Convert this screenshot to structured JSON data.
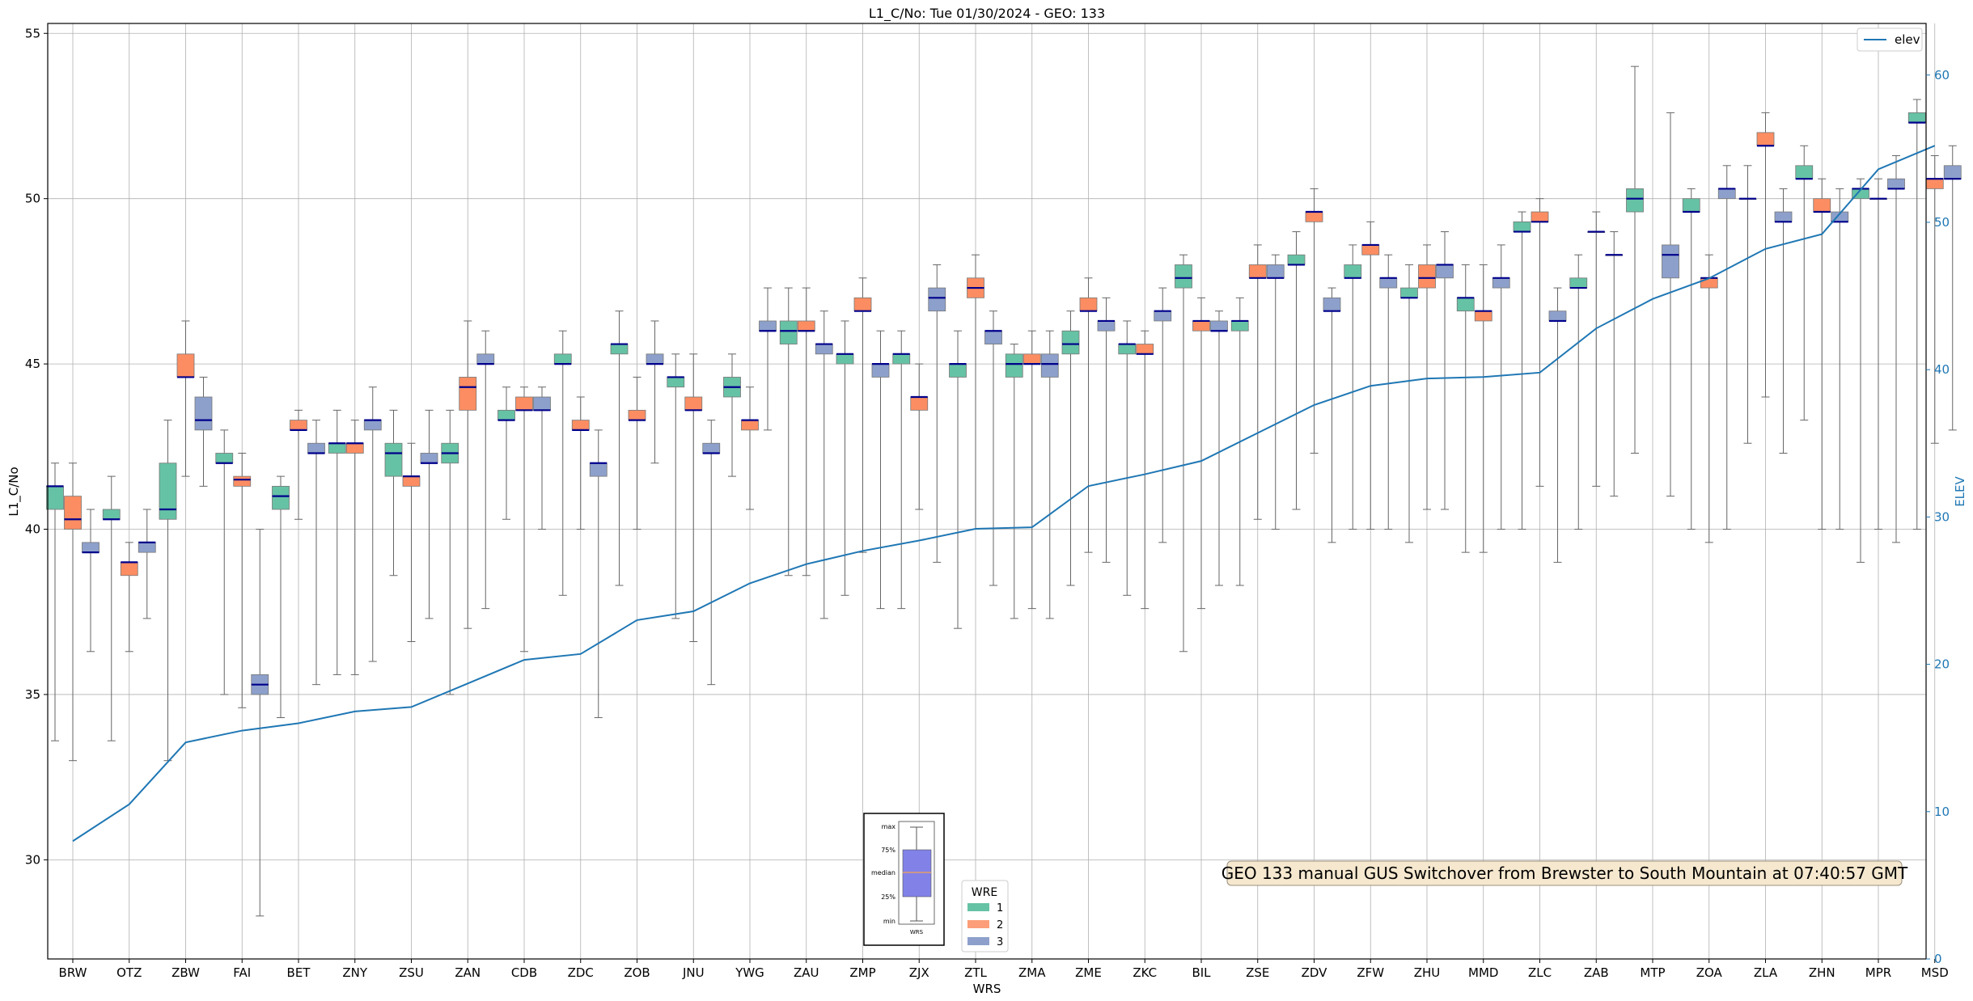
{
  "chart_data": {
    "type": "box",
    "title": "L1_C/No: Tue 01/30/2024 - GEO: 133",
    "xlabel": "WRS",
    "ylabel": "L1_C/No",
    "y2label": "ELEV",
    "ylim": [
      27.0,
      55.3
    ],
    "y2lim": [
      0,
      63.5
    ],
    "yticks": [
      30,
      35,
      40,
      45,
      50,
      55
    ],
    "y2ticks": [
      0,
      10,
      20,
      30,
      40,
      50,
      60
    ],
    "grid": true,
    "categories": [
      "BRW",
      "OTZ",
      "ZBW",
      "FAI",
      "BET",
      "ZNY",
      "ZSU",
      "ZAN",
      "CDB",
      "ZDC",
      "ZOB",
      "JNU",
      "YWG",
      "ZAU",
      "ZMP",
      "ZJX",
      "ZTL",
      "ZMA",
      "ZME",
      "ZKC",
      "BIL",
      "ZSE",
      "ZDV",
      "ZFW",
      "ZHU",
      "MMD",
      "ZLC",
      "ZAB",
      "MTP",
      "ZOA",
      "ZLA",
      "ZHN",
      "MPR",
      "MSD"
    ],
    "series_colors": {
      "1": "#66c2a5",
      "2": "#fc8d62",
      "3": "#8da0cb"
    },
    "elev_color": "#1f77b4",
    "boxes": [
      {
        "s": "BRW",
        "w": 1,
        "min": 33.6,
        "q1": 40.6,
        "med": 41.3,
        "q3": 41.3,
        "max": 42.0
      },
      {
        "s": "BRW",
        "w": 2,
        "min": 33.0,
        "q1": 40.0,
        "med": 40.3,
        "q3": 41.0,
        "max": 42.0
      },
      {
        "s": "BRW",
        "w": 3,
        "min": 36.3,
        "q1": 39.3,
        "med": 39.3,
        "q3": 39.6,
        "max": 40.6
      },
      {
        "s": "OTZ",
        "w": 1,
        "min": 33.6,
        "q1": 40.3,
        "med": 40.3,
        "q3": 40.6,
        "max": 41.6
      },
      {
        "s": "OTZ",
        "w": 2,
        "min": 36.3,
        "q1": 38.6,
        "med": 39.0,
        "q3": 39.0,
        "max": 39.6
      },
      {
        "s": "OTZ",
        "w": 3,
        "min": 37.3,
        "q1": 39.3,
        "med": 39.6,
        "q3": 39.6,
        "max": 40.6
      },
      {
        "s": "ZBW",
        "w": 1,
        "min": 33.0,
        "q1": 40.3,
        "med": 40.6,
        "q3": 42.0,
        "max": 43.3
      },
      {
        "s": "ZBW",
        "w": 2,
        "min": 41.6,
        "q1": 44.6,
        "med": 44.6,
        "q3": 45.3,
        "max": 46.3
      },
      {
        "s": "ZBW",
        "w": 3,
        "min": 41.3,
        "q1": 43.0,
        "med": 43.3,
        "q3": 44.0,
        "max": 44.6
      },
      {
        "s": "FAI",
        "w": 1,
        "min": 35.0,
        "q1": 42.0,
        "med": 42.0,
        "q3": 42.3,
        "max": 43.0
      },
      {
        "s": "FAI",
        "w": 2,
        "min": 34.6,
        "q1": 41.3,
        "med": 41.5,
        "q3": 41.6,
        "max": 42.3
      },
      {
        "s": "FAI",
        "w": 3,
        "min": 28.3,
        "q1": 35.0,
        "med": 35.3,
        "q3": 35.6,
        "max": 40.0
      },
      {
        "s": "BET",
        "w": 1,
        "min": 34.3,
        "q1": 40.6,
        "med": 41.0,
        "q3": 41.3,
        "max": 41.6
      },
      {
        "s": "BET",
        "w": 2,
        "min": 40.3,
        "q1": 43.0,
        "med": 43.0,
        "q3": 43.3,
        "max": 43.6
      },
      {
        "s": "BET",
        "w": 3,
        "min": 35.3,
        "q1": 42.3,
        "med": 42.3,
        "q3": 42.6,
        "max": 43.3
      },
      {
        "s": "ZNY",
        "w": 1,
        "min": 35.6,
        "q1": 42.3,
        "med": 42.6,
        "q3": 42.6,
        "max": 43.6
      },
      {
        "s": "ZNY",
        "w": 2,
        "min": 35.6,
        "q1": 42.3,
        "med": 42.6,
        "q3": 42.6,
        "max": 43.3
      },
      {
        "s": "ZNY",
        "w": 3,
        "min": 36.0,
        "q1": 43.0,
        "med": 43.3,
        "q3": 43.3,
        "max": 44.3
      },
      {
        "s": "ZSU",
        "w": 1,
        "min": 38.6,
        "q1": 41.6,
        "med": 42.3,
        "q3": 42.6,
        "max": 43.6
      },
      {
        "s": "ZSU",
        "w": 2,
        "min": 36.6,
        "q1": 41.3,
        "med": 41.6,
        "q3": 41.6,
        "max": 42.6
      },
      {
        "s": "ZSU",
        "w": 3,
        "min": 37.3,
        "q1": 42.0,
        "med": 42.0,
        "q3": 42.3,
        "max": 43.6
      },
      {
        "s": "ZAN",
        "w": 1,
        "min": 35.0,
        "q1": 42.0,
        "med": 42.3,
        "q3": 42.6,
        "max": 43.6
      },
      {
        "s": "ZAN",
        "w": 2,
        "min": 37.0,
        "q1": 43.6,
        "med": 44.3,
        "q3": 44.6,
        "max": 46.3
      },
      {
        "s": "ZAN",
        "w": 3,
        "min": 37.6,
        "q1": 45.0,
        "med": 45.0,
        "q3": 45.3,
        "max": 46.0
      },
      {
        "s": "CDB",
        "w": 1,
        "min": 40.3,
        "q1": 43.3,
        "med": 43.3,
        "q3": 43.6,
        "max": 44.3
      },
      {
        "s": "CDB",
        "w": 2,
        "min": 36.3,
        "q1": 43.6,
        "med": 43.6,
        "q3": 44.0,
        "max": 44.3
      },
      {
        "s": "CDB",
        "w": 3,
        "min": 40.0,
        "q1": 43.6,
        "med": 43.6,
        "q3": 44.0,
        "max": 44.3
      },
      {
        "s": "ZDC",
        "w": 1,
        "min": 38.0,
        "q1": 45.0,
        "med": 45.0,
        "q3": 45.3,
        "max": 46.0
      },
      {
        "s": "ZDC",
        "w": 2,
        "min": 40.0,
        "q1": 43.0,
        "med": 43.0,
        "q3": 43.3,
        "max": 44.0
      },
      {
        "s": "ZDC",
        "w": 3,
        "min": 34.3,
        "q1": 41.6,
        "med": 42.0,
        "q3": 42.0,
        "max": 43.0
      },
      {
        "s": "ZOB",
        "w": 1,
        "min": 38.3,
        "q1": 45.3,
        "med": 45.6,
        "q3": 45.6,
        "max": 46.6
      },
      {
        "s": "ZOB",
        "w": 2,
        "min": 40.0,
        "q1": 43.3,
        "med": 43.3,
        "q3": 43.6,
        "max": 44.6
      },
      {
        "s": "ZOB",
        "w": 3,
        "min": 42.0,
        "q1": 45.0,
        "med": 45.0,
        "q3": 45.3,
        "max": 46.3
      },
      {
        "s": "JNU",
        "w": 1,
        "min": 37.3,
        "q1": 44.3,
        "med": 44.6,
        "q3": 44.6,
        "max": 45.3
      },
      {
        "s": "JNU",
        "w": 2,
        "min": 36.6,
        "q1": 43.6,
        "med": 43.6,
        "q3": 44.0,
        "max": 45.3
      },
      {
        "s": "JNU",
        "w": 3,
        "min": 35.3,
        "q1": 42.3,
        "med": 42.3,
        "q3": 42.6,
        "max": 43.3
      },
      {
        "s": "YWG",
        "w": 1,
        "min": 41.6,
        "q1": 44.0,
        "med": 44.3,
        "q3": 44.6,
        "max": 45.3
      },
      {
        "s": "YWG",
        "w": 2,
        "min": 40.6,
        "q1": 43.0,
        "med": 43.3,
        "q3": 43.3,
        "max": 44.3
      },
      {
        "s": "YWG",
        "w": 3,
        "min": 43.0,
        "q1": 46.0,
        "med": 46.0,
        "q3": 46.3,
        "max": 47.3
      },
      {
        "s": "ZAU",
        "w": 1,
        "min": 38.6,
        "q1": 45.6,
        "med": 46.0,
        "q3": 46.3,
        "max": 47.3
      },
      {
        "s": "ZAU",
        "w": 2,
        "min": 38.6,
        "q1": 46.0,
        "med": 46.0,
        "q3": 46.3,
        "max": 47.3
      },
      {
        "s": "ZAU",
        "w": 3,
        "min": 37.3,
        "q1": 45.3,
        "med": 45.6,
        "q3": 45.6,
        "max": 46.6
      },
      {
        "s": "ZMP",
        "w": 1,
        "min": 38.0,
        "q1": 45.0,
        "med": 45.3,
        "q3": 45.3,
        "max": 46.3
      },
      {
        "s": "ZMP",
        "w": 2,
        "min": 39.3,
        "q1": 46.6,
        "med": 46.6,
        "q3": 47.0,
        "max": 47.6
      },
      {
        "s": "ZMP",
        "w": 3,
        "min": 37.6,
        "q1": 44.6,
        "med": 45.0,
        "q3": 45.0,
        "max": 46.0
      },
      {
        "s": "ZJX",
        "w": 1,
        "min": 37.6,
        "q1": 45.0,
        "med": 45.3,
        "q3": 45.3,
        "max": 46.0
      },
      {
        "s": "ZJX",
        "w": 2,
        "min": 40.6,
        "q1": 43.6,
        "med": 44.0,
        "q3": 44.0,
        "max": 45.0
      },
      {
        "s": "ZJX",
        "w": 3,
        "min": 39.0,
        "q1": 46.6,
        "med": 47.0,
        "q3": 47.3,
        "max": 48.0
      },
      {
        "s": "ZTL",
        "w": 1,
        "min": 37.0,
        "q1": 44.6,
        "med": 45.0,
        "q3": 45.0,
        "max": 46.0
      },
      {
        "s": "ZTL",
        "w": 2,
        "min": 40.0,
        "q1": 47.0,
        "med": 47.3,
        "q3": 47.6,
        "max": 48.3
      },
      {
        "s": "ZTL",
        "w": 3,
        "min": 38.3,
        "q1": 45.6,
        "med": 46.0,
        "q3": 46.0,
        "max": 46.6
      },
      {
        "s": "ZMA",
        "w": 1,
        "min": 37.3,
        "q1": 44.6,
        "med": 45.0,
        "q3": 45.3,
        "max": 45.6
      },
      {
        "s": "ZMA",
        "w": 2,
        "min": 37.6,
        "q1": 45.0,
        "med": 45.0,
        "q3": 45.3,
        "max": 46.0
      },
      {
        "s": "ZMA",
        "w": 3,
        "min": 37.3,
        "q1": 44.6,
        "med": 45.0,
        "q3": 45.3,
        "max": 46.0
      },
      {
        "s": "ZME",
        "w": 1,
        "min": 38.3,
        "q1": 45.3,
        "med": 45.6,
        "q3": 46.0,
        "max": 46.6
      },
      {
        "s": "ZME",
        "w": 2,
        "min": 39.3,
        "q1": 46.6,
        "med": 46.6,
        "q3": 47.0,
        "max": 47.6
      },
      {
        "s": "ZME",
        "w": 3,
        "min": 39.0,
        "q1": 46.0,
        "med": 46.3,
        "q3": 46.3,
        "max": 47.0
      },
      {
        "s": "ZKC",
        "w": 1,
        "min": 38.0,
        "q1": 45.3,
        "med": 45.6,
        "q3": 45.6,
        "max": 46.3
      },
      {
        "s": "ZKC",
        "w": 2,
        "min": 37.6,
        "q1": 45.3,
        "med": 45.3,
        "q3": 45.6,
        "max": 46.0
      },
      {
        "s": "ZKC",
        "w": 3,
        "min": 39.6,
        "q1": 46.3,
        "med": 46.6,
        "q3": 46.6,
        "max": 47.3
      },
      {
        "s": "BIL",
        "w": 1,
        "min": 36.3,
        "q1": 47.3,
        "med": 47.6,
        "q3": 48.0,
        "max": 48.3
      },
      {
        "s": "BIL",
        "w": 2,
        "min": 37.6,
        "q1": 46.0,
        "med": 46.3,
        "q3": 46.3,
        "max": 47.0
      },
      {
        "s": "BIL",
        "w": 3,
        "min": 38.3,
        "q1": 46.0,
        "med": 46.0,
        "q3": 46.3,
        "max": 46.6
      },
      {
        "s": "ZSE",
        "w": 1,
        "min": 38.3,
        "q1": 46.0,
        "med": 46.3,
        "q3": 46.3,
        "max": 47.0
      },
      {
        "s": "ZSE",
        "w": 2,
        "min": 40.3,
        "q1": 47.6,
        "med": 47.6,
        "q3": 48.0,
        "max": 48.6
      },
      {
        "s": "ZSE",
        "w": 3,
        "min": 40.0,
        "q1": 47.6,
        "med": 47.6,
        "q3": 48.0,
        "max": 48.3
      },
      {
        "s": "ZDV",
        "w": 1,
        "min": 40.6,
        "q1": 48.0,
        "med": 48.0,
        "q3": 48.3,
        "max": 49.0
      },
      {
        "s": "ZDV",
        "w": 2,
        "min": 42.3,
        "q1": 49.3,
        "med": 49.6,
        "q3": 49.6,
        "max": 50.3
      },
      {
        "s": "ZDV",
        "w": 3,
        "min": 39.6,
        "q1": 46.6,
        "med": 46.6,
        "q3": 47.0,
        "max": 47.3
      },
      {
        "s": "ZFW",
        "w": 1,
        "min": 40.0,
        "q1": 47.6,
        "med": 47.6,
        "q3": 48.0,
        "max": 48.6
      },
      {
        "s": "ZFW",
        "w": 2,
        "min": 40.0,
        "q1": 48.3,
        "med": 48.6,
        "q3": 48.6,
        "max": 49.3
      },
      {
        "s": "ZFW",
        "w": 3,
        "min": 40.0,
        "q1": 47.3,
        "med": 47.6,
        "q3": 47.6,
        "max": 48.3
      },
      {
        "s": "ZHU",
        "w": 1,
        "min": 39.6,
        "q1": 47.0,
        "med": 47.0,
        "q3": 47.3,
        "max": 48.0
      },
      {
        "s": "ZHU",
        "w": 2,
        "min": 40.6,
        "q1": 47.3,
        "med": 47.6,
        "q3": 48.0,
        "max": 48.6
      },
      {
        "s": "ZHU",
        "w": 3,
        "min": 40.6,
        "q1": 47.6,
        "med": 48.0,
        "q3": 48.0,
        "max": 49.0
      },
      {
        "s": "MMD",
        "w": 1,
        "min": 39.3,
        "q1": 46.6,
        "med": 47.0,
        "q3": 47.0,
        "max": 48.0
      },
      {
        "s": "MMD",
        "w": 2,
        "min": 39.3,
        "q1": 46.3,
        "med": 46.6,
        "q3": 46.6,
        "max": 48.0
      },
      {
        "s": "MMD",
        "w": 3,
        "min": 40.0,
        "q1": 47.3,
        "med": 47.6,
        "q3": 47.6,
        "max": 48.6
      },
      {
        "s": "ZLC",
        "w": 1,
        "min": 40.0,
        "q1": 49.0,
        "med": 49.0,
        "q3": 49.3,
        "max": 49.6
      },
      {
        "s": "ZLC",
        "w": 2,
        "min": 41.3,
        "q1": 49.3,
        "med": 49.3,
        "q3": 49.6,
        "max": 50.0
      },
      {
        "s": "ZLC",
        "w": 3,
        "min": 39.0,
        "q1": 46.3,
        "med": 46.3,
        "q3": 46.6,
        "max": 47.3
      },
      {
        "s": "ZAB",
        "w": 1,
        "min": 40.0,
        "q1": 47.3,
        "med": 47.3,
        "q3": 47.6,
        "max": 48.3
      },
      {
        "s": "ZAB",
        "w": 2,
        "min": 41.3,
        "q1": 49.0,
        "med": 49.0,
        "q3": 49.0,
        "max": 49.6
      },
      {
        "s": "ZAB",
        "w": 3,
        "min": 41.0,
        "q1": 48.3,
        "med": 48.3,
        "q3": 48.3,
        "max": 49.0
      },
      {
        "s": "MTP",
        "w": 1,
        "min": 42.3,
        "q1": 49.6,
        "med": 50.0,
        "q3": 50.3,
        "max": 54.0
      },
      {
        "s": "MTP",
        "w": 2,
        "min": null,
        "q1": null,
        "med": null,
        "q3": null,
        "max": null
      },
      {
        "s": "MTP",
        "w": 3,
        "min": 41.0,
        "q1": 47.6,
        "med": 48.3,
        "q3": 48.6,
        "max": 52.6
      },
      {
        "s": "ZOA",
        "w": 1,
        "min": 40.0,
        "q1": 49.6,
        "med": 49.6,
        "q3": 50.0,
        "max": 50.3
      },
      {
        "s": "ZOA",
        "w": 2,
        "min": 39.6,
        "q1": 47.3,
        "med": 47.6,
        "q3": 47.6,
        "max": 48.3
      },
      {
        "s": "ZOA",
        "w": 3,
        "min": 40.0,
        "q1": 50.0,
        "med": 50.3,
        "q3": 50.3,
        "max": 51.0
      },
      {
        "s": "ZLA",
        "w": 1,
        "min": 42.6,
        "q1": 50.0,
        "med": 50.0,
        "q3": 50.0,
        "max": 51.0
      },
      {
        "s": "ZLA",
        "w": 2,
        "min": 44.0,
        "q1": 51.6,
        "med": 51.6,
        "q3": 52.0,
        "max": 52.6
      },
      {
        "s": "ZLA",
        "w": 3,
        "min": 42.3,
        "q1": 49.3,
        "med": 49.3,
        "q3": 49.6,
        "max": 50.3
      },
      {
        "s": "ZHN",
        "w": 1,
        "min": 43.3,
        "q1": 50.6,
        "med": 50.6,
        "q3": 51.0,
        "max": 51.6
      },
      {
        "s": "ZHN",
        "w": 2,
        "min": 40.0,
        "q1": 49.6,
        "med": 49.6,
        "q3": 50.0,
        "max": 50.6
      },
      {
        "s": "ZHN",
        "w": 3,
        "min": 40.0,
        "q1": 49.3,
        "med": 49.3,
        "q3": 49.6,
        "max": 50.3
      },
      {
        "s": "MPR",
        "w": 1,
        "min": 39.0,
        "q1": 50.0,
        "med": 50.3,
        "q3": 50.3,
        "max": 50.6
      },
      {
        "s": "MPR",
        "w": 2,
        "min": 40.0,
        "q1": 50.0,
        "med": 50.0,
        "q3": 50.0,
        "max": 50.6
      },
      {
        "s": "MPR",
        "w": 3,
        "min": 39.6,
        "q1": 50.3,
        "med": 50.3,
        "q3": 50.6,
        "max": 51.3
      },
      {
        "s": "MSD",
        "w": 1,
        "min": 40.0,
        "q1": 52.3,
        "med": 52.3,
        "q3": 52.6,
        "max": 53.0
      },
      {
        "s": "MSD",
        "w": 2,
        "min": 42.6,
        "q1": 50.3,
        "med": 50.6,
        "q3": 50.6,
        "max": 51.3
      },
      {
        "s": "MSD",
        "w": 3,
        "min": 43.0,
        "q1": 50.6,
        "med": 50.6,
        "q3": 51.0,
        "max": 51.6
      }
    ],
    "elev": [
      8.0,
      10.5,
      14.7,
      15.5,
      16.0,
      16.8,
      17.1,
      18.7,
      20.3,
      20.7,
      23.0,
      23.6,
      25.5,
      26.8,
      27.7,
      28.4,
      29.2,
      29.3,
      32.1,
      32.9,
      33.8,
      35.7,
      37.6,
      38.9,
      39.4,
      39.5,
      39.8,
      42.8,
      44.8,
      46.2,
      48.2,
      49.2,
      53.6,
      55.2
    ],
    "legend_elev": {
      "label": "elev",
      "placement": "top-right"
    },
    "legend_wre": {
      "title": "WRE",
      "entries": [
        "1",
        "2",
        "3"
      ],
      "placement": "bottom-center"
    },
    "key_labels": [
      "max",
      "75%",
      "median",
      "25%",
      "min"
    ],
    "key_xlabel": "WRS",
    "annotation": "GEO 133 manual GUS Switchover from Brewster to South Mountain at 07:40:57 GMT"
  }
}
